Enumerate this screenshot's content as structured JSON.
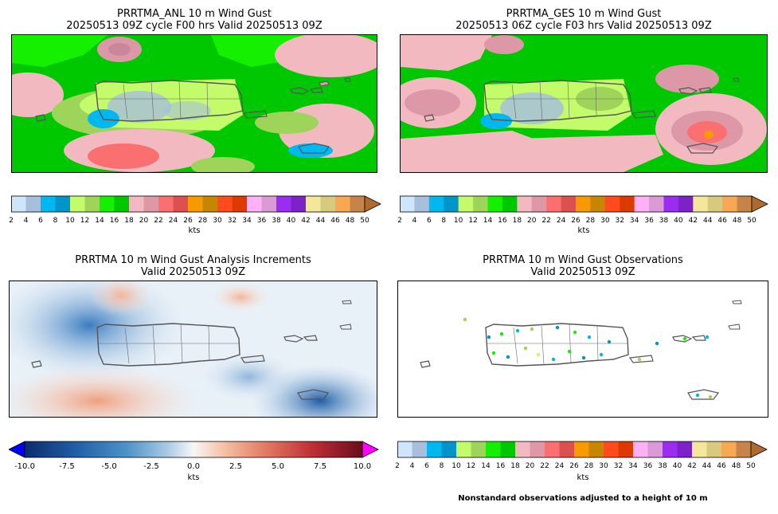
{
  "panels": {
    "anl": {
      "title_line1": "PRRTMA_ANL 10 m Wind Gust",
      "title_line2": "20250513 09Z cycle F00 hrs Valid 20250513 09Z"
    },
    "ges": {
      "title_line1": "PRRTMA_GES 10 m Wind Gust",
      "title_line2": "20250513 06Z cycle F03 hrs Valid 20250513 09Z"
    },
    "inc": {
      "title_line1": "PRRTMA 10 m Wind Gust Analysis Increments",
      "title_line2": "Valid 20250513 09Z"
    },
    "obs": {
      "title_line1": "PRRTMA 10 m Wind Gust Observations",
      "title_line2": "Valid 20250513 09Z"
    }
  },
  "gust_colorbar": {
    "ticks": [
      "2",
      "4",
      "6",
      "8",
      "10",
      "12",
      "14",
      "16",
      "18",
      "20",
      "22",
      "24",
      "26",
      "28",
      "30",
      "32",
      "34",
      "36",
      "38",
      "40",
      "42",
      "44",
      "46",
      "48",
      "50"
    ],
    "colors": [
      "#cfe5fb",
      "#a7bedc",
      "#00b8f0",
      "#0095c9",
      "#c3fb6b",
      "#9ed45a",
      "#14f000",
      "#00c800",
      "#f2b9c1",
      "#dc98a6",
      "#fa7070",
      "#dc5050",
      "#f79a00",
      "#c78600",
      "#ff4b1e",
      "#dd3a00",
      "#ffb1f7",
      "#d99ad6",
      "#9a2df0",
      "#7c22c8",
      "#f5e79a",
      "#d7c97d",
      "#f7a852",
      "#c7844a"
    ],
    "extend_color": "#b06a2e",
    "units": "kts"
  },
  "increment_colorbar": {
    "ticks": [
      "-10.0",
      "-7.5",
      "-5.0",
      "-2.5",
      "0.0",
      "2.5",
      "5.0",
      "7.5",
      "10.0"
    ],
    "under_color": "#0000ff",
    "over_color": "#ff00ff",
    "units": "kts"
  },
  "obs_note": "Nonstandard observations adjusted to a height of 10 m"
}
